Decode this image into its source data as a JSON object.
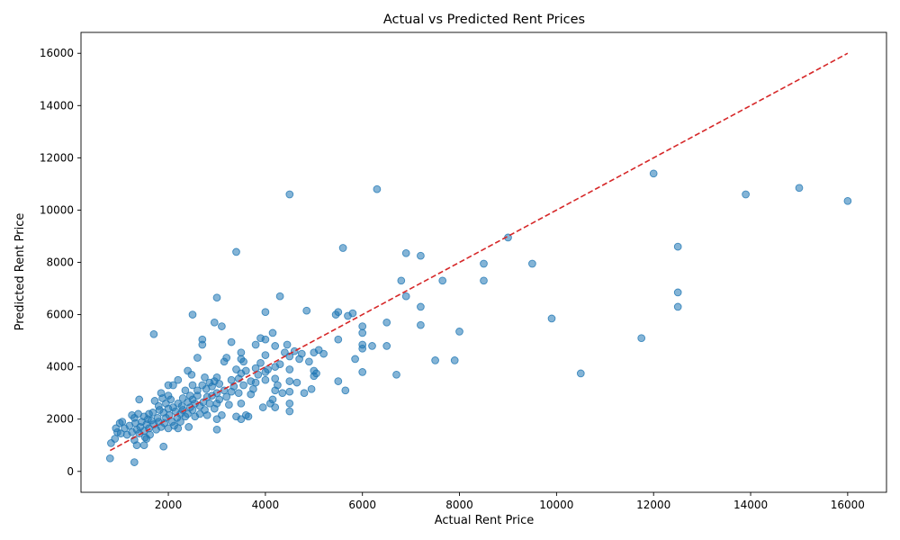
{
  "chart_data": {
    "type": "scatter",
    "title": "Actual vs Predicted Rent Prices",
    "xlabel": "Actual Rent Price",
    "ylabel": "Predicted Rent Price",
    "xlim": [
      200,
      16800
    ],
    "ylim": [
      -800,
      16800
    ],
    "xticks": [
      2000,
      4000,
      6000,
      8000,
      10000,
      12000,
      14000,
      16000
    ],
    "yticks": [
      0,
      2000,
      4000,
      6000,
      8000,
      10000,
      12000,
      14000,
      16000
    ],
    "grid": false,
    "point_color": "#1f77b4",
    "reference_line": {
      "style": "dashed",
      "color": "#d62728",
      "from": [
        800,
        800
      ],
      "to": [
        16000,
        16000
      ]
    },
    "points": [
      [
        800,
        500
      ],
      [
        820,
        1080
      ],
      [
        900,
        1250
      ],
      [
        920,
        1650
      ],
      [
        950,
        1500
      ],
      [
        1000,
        1850
      ],
      [
        1020,
        1450
      ],
      [
        1050,
        1900
      ],
      [
        1100,
        1650
      ],
      [
        1150,
        1400
      ],
      [
        1200,
        1750
      ],
      [
        1250,
        2150
      ],
      [
        1250,
        1500
      ],
      [
        1300,
        350
      ],
      [
        1300,
        1200
      ],
      [
        1300,
        2050
      ],
      [
        1320,
        1850
      ],
      [
        1350,
        1600
      ],
      [
        1350,
        1000
      ],
      [
        1380,
        2200
      ],
      [
        1400,
        2750
      ],
      [
        1400,
        1450
      ],
      [
        1420,
        1700
      ],
      [
        1450,
        1900
      ],
      [
        1500,
        1000
      ],
      [
        1500,
        1550
      ],
      [
        1500,
        2100
      ],
      [
        1520,
        1300
      ],
      [
        1550,
        1800
      ],
      [
        1550,
        1250
      ],
      [
        1580,
        2000
      ],
      [
        1600,
        2200
      ],
      [
        1600,
        1650
      ],
      [
        1620,
        1400
      ],
      [
        1650,
        1950
      ],
      [
        1680,
        2250
      ],
      [
        1700,
        5250
      ],
      [
        1700,
        1800
      ],
      [
        1720,
        2700
      ],
      [
        1750,
        1600
      ],
      [
        1780,
        2050
      ],
      [
        1800,
        2500
      ],
      [
        1800,
        1900
      ],
      [
        1820,
        2350
      ],
      [
        1850,
        3000
      ],
      [
        1850,
        1700
      ],
      [
        1880,
        2800
      ],
      [
        1900,
        950
      ],
      [
        1900,
        2250
      ],
      [
        1920,
        1850
      ],
      [
        1950,
        2600
      ],
      [
        1950,
        2050
      ],
      [
        2000,
        3300
      ],
      [
        2000,
        2900
      ],
      [
        2000,
        2400
      ],
      [
        2000,
        1650
      ],
      [
        2020,
        2150
      ],
      [
        2050,
        2750
      ],
      [
        2080,
        1900
      ],
      [
        2100,
        3300
      ],
      [
        2100,
        2450
      ],
      [
        2120,
        1750
      ],
      [
        2150,
        2300
      ],
      [
        2180,
        2050
      ],
      [
        2200,
        3500
      ],
      [
        2200,
        2600
      ],
      [
        2200,
        1650
      ],
      [
        2250,
        2200
      ],
      [
        2250,
        1900
      ],
      [
        2280,
        2500
      ],
      [
        2300,
        2800
      ],
      [
        2300,
        2350
      ],
      [
        2350,
        3100
      ],
      [
        2350,
        2100
      ],
      [
        2400,
        3850
      ],
      [
        2400,
        2650
      ],
      [
        2400,
        2200
      ],
      [
        2420,
        1700
      ],
      [
        2450,
        2900
      ],
      [
        2450,
        2450
      ],
      [
        2480,
        3700
      ],
      [
        2500,
        6000
      ],
      [
        2500,
        3300
      ],
      [
        2500,
        2750
      ],
      [
        2500,
        2350
      ],
      [
        2550,
        2600
      ],
      [
        2550,
        2100
      ],
      [
        2600,
        4350
      ],
      [
        2600,
        3100
      ],
      [
        2600,
        2900
      ],
      [
        2650,
        2500
      ],
      [
        2650,
        2200
      ],
      [
        2700,
        5050
      ],
      [
        2700,
        4850
      ],
      [
        2700,
        3300
      ],
      [
        2720,
        2650
      ],
      [
        2750,
        3600
      ],
      [
        2750,
        2350
      ],
      [
        2780,
        3150
      ],
      [
        2800,
        2850
      ],
      [
        2800,
        2150
      ],
      [
        2850,
        3400
      ],
      [
        2850,
        2600
      ],
      [
        2900,
        3250
      ],
      [
        2900,
        2900
      ],
      [
        2950,
        5700
      ],
      [
        2950,
        3450
      ],
      [
        2950,
        2400
      ],
      [
        3000,
        6650
      ],
      [
        3000,
        3600
      ],
      [
        3000,
        3000
      ],
      [
        3000,
        2600
      ],
      [
        3000,
        2000
      ],
      [
        3000,
        1600
      ],
      [
        3050,
        3350
      ],
      [
        3050,
        2750
      ],
      [
        3100,
        5550
      ],
      [
        3100,
        2150
      ],
      [
        3150,
        4200
      ],
      [
        3150,
        3100
      ],
      [
        3200,
        4350
      ],
      [
        3200,
        2850
      ],
      [
        3250,
        2550
      ],
      [
        3300,
        4950
      ],
      [
        3300,
        3500
      ],
      [
        3300,
        3050
      ],
      [
        3350,
        3250
      ],
      [
        3400,
        8400
      ],
      [
        3400,
        3900
      ],
      [
        3400,
        2100
      ],
      [
        3450,
        3550
      ],
      [
        3450,
        3000
      ],
      [
        3500,
        4550
      ],
      [
        3500,
        4300
      ],
      [
        3500,
        3750
      ],
      [
        3500,
        2600
      ],
      [
        3500,
        2000
      ],
      [
        3550,
        4200
      ],
      [
        3550,
        3300
      ],
      [
        3600,
        3850
      ],
      [
        3600,
        2150
      ],
      [
        3650,
        2100
      ],
      [
        3700,
        3450
      ],
      [
        3700,
        2950
      ],
      [
        3750,
        3150
      ],
      [
        3800,
        4850
      ],
      [
        3800,
        3950
      ],
      [
        3800,
        3400
      ],
      [
        3850,
        3700
      ],
      [
        3900,
        5100
      ],
      [
        3900,
        4150
      ],
      [
        3950,
        2450
      ],
      [
        4000,
        6100
      ],
      [
        4000,
        5050
      ],
      [
        4000,
        4450
      ],
      [
        4000,
        3800
      ],
      [
        4000,
        3500
      ],
      [
        4050,
        3900
      ],
      [
        4100,
        2600
      ],
      [
        4150,
        5300
      ],
      [
        4150,
        2750
      ],
      [
        4200,
        4800
      ],
      [
        4200,
        4000
      ],
      [
        4200,
        3550
      ],
      [
        4200,
        3100
      ],
      [
        4200,
        2450
      ],
      [
        4250,
        3300
      ],
      [
        4300,
        6700
      ],
      [
        4300,
        4100
      ],
      [
        4350,
        3000
      ],
      [
        4400,
        4550
      ],
      [
        4450,
        4850
      ],
      [
        4500,
        10600
      ],
      [
        4500,
        4400
      ],
      [
        4500,
        3900
      ],
      [
        4500,
        3450
      ],
      [
        4500,
        3050
      ],
      [
        4500,
        2600
      ],
      [
        4500,
        2300
      ],
      [
        4600,
        4600
      ],
      [
        4650,
        3400
      ],
      [
        4700,
        4300
      ],
      [
        4750,
        4500
      ],
      [
        4800,
        3000
      ],
      [
        4850,
        6150
      ],
      [
        4900,
        4200
      ],
      [
        4950,
        3150
      ],
      [
        5000,
        4550
      ],
      [
        5000,
        3850
      ],
      [
        5000,
        3650
      ],
      [
        5050,
        3750
      ],
      [
        5100,
        4650
      ],
      [
        5200,
        4500
      ],
      [
        5450,
        6000
      ],
      [
        5500,
        6100
      ],
      [
        5500,
        5050
      ],
      [
        5500,
        3450
      ],
      [
        5600,
        8550
      ],
      [
        5650,
        3100
      ],
      [
        5700,
        5950
      ],
      [
        5800,
        6050
      ],
      [
        5850,
        4300
      ],
      [
        6000,
        5550
      ],
      [
        6000,
        5300
      ],
      [
        6000,
        4850
      ],
      [
        6000,
        4700
      ],
      [
        6000,
        3800
      ],
      [
        6200,
        4800
      ],
      [
        6300,
        10800
      ],
      [
        6500,
        5700
      ],
      [
        6500,
        4800
      ],
      [
        6700,
        3700
      ],
      [
        6800,
        7300
      ],
      [
        6900,
        8350
      ],
      [
        6900,
        6700
      ],
      [
        7200,
        8250
      ],
      [
        7200,
        6300
      ],
      [
        7200,
        5600
      ],
      [
        7500,
        4250
      ],
      [
        7650,
        7300
      ],
      [
        7900,
        4250
      ],
      [
        8000,
        5350
      ],
      [
        8500,
        7950
      ],
      [
        8500,
        7300
      ],
      [
        9000,
        8950
      ],
      [
        9500,
        7950
      ],
      [
        9900,
        5850
      ],
      [
        10500,
        3750
      ],
      [
        11750,
        5100
      ],
      [
        12000,
        11400
      ],
      [
        12500,
        8600
      ],
      [
        12500,
        6850
      ],
      [
        12500,
        6300
      ],
      [
        13900,
        10600
      ],
      [
        15000,
        10850
      ],
      [
        16000,
        10350
      ]
    ]
  }
}
